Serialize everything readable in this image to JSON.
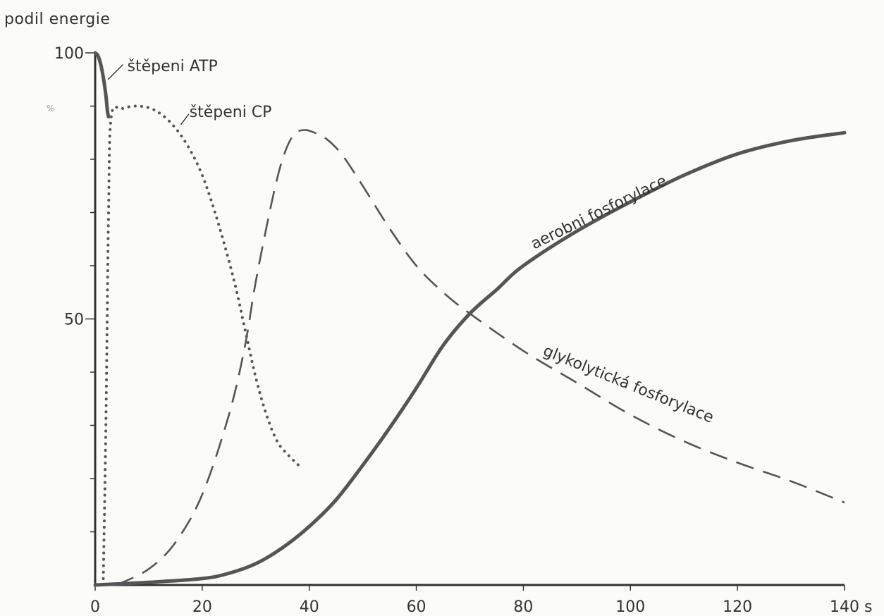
{
  "chart_data": {
    "type": "line",
    "ylabel": "podil energie",
    "xlabel": "s",
    "xlim": [
      0,
      140
    ],
    "ylim": [
      0,
      100
    ],
    "x_ticks": [
      0,
      20,
      40,
      60,
      80,
      100,
      120,
      140
    ],
    "y_tick_labels": [
      {
        "value": 50,
        "label": "50"
      },
      {
        "value": 100,
        "label": "100"
      }
    ],
    "y_ticks_unlabeled": [
      10,
      20,
      30,
      40,
      60,
      70,
      80,
      90
    ],
    "grid": false,
    "series": [
      {
        "name": "štěpeni ATP",
        "style": "solid",
        "color": "#555555",
        "x": [
          0,
          0.5,
          1,
          1.5,
          2,
          2.3,
          2.5
        ],
        "y": [
          100,
          99.5,
          98,
          95.5,
          92,
          89,
          88
        ]
      },
      {
        "name": "štěpeni CP",
        "style": "dotted",
        "color": "#555555",
        "x": [
          1.5,
          2,
          2.5,
          3,
          5,
          8,
          11,
          14,
          17,
          20,
          23,
          26,
          28,
          30,
          32,
          34,
          36,
          38
        ],
        "y": [
          0,
          30,
          70,
          88,
          89.5,
          90,
          89.3,
          87,
          83,
          77,
          68,
          57,
          48,
          39,
          32,
          27,
          24.5,
          22.5
        ]
      },
      {
        "name": "glykolytická fosforylace",
        "style": "dashed",
        "color": "#555555",
        "x": [
          4,
          10,
          15,
          20,
          25,
          28,
          30,
          33,
          35,
          37,
          39,
          41,
          43,
          46,
          50,
          55,
          60,
          65,
          70,
          80,
          90,
          100,
          110,
          120,
          130,
          140
        ],
        "y": [
          0,
          3,
          8,
          17,
          32,
          45,
          57,
          72,
          80,
          84.5,
          85.5,
          85,
          84,
          81,
          75,
          67,
          60,
          55,
          51,
          44,
          38,
          32,
          27,
          23,
          19.5,
          15.5
        ]
      },
      {
        "name": "aerobni fosforylace",
        "style": "solid",
        "color": "#555555",
        "x": [
          0,
          10,
          20,
          25,
          30,
          35,
          40,
          45,
          50,
          55,
          60,
          65,
          70,
          75,
          80,
          90,
          100,
          110,
          120,
          130,
          140
        ],
        "y": [
          0,
          0.5,
          1.2,
          2.2,
          4,
          7,
          11,
          16,
          22.5,
          29.5,
          37,
          45,
          51,
          55.5,
          60,
          66.5,
          72,
          77,
          81,
          83.5,
          85
        ]
      }
    ],
    "annotations": {
      "pct_mark": "%"
    }
  }
}
